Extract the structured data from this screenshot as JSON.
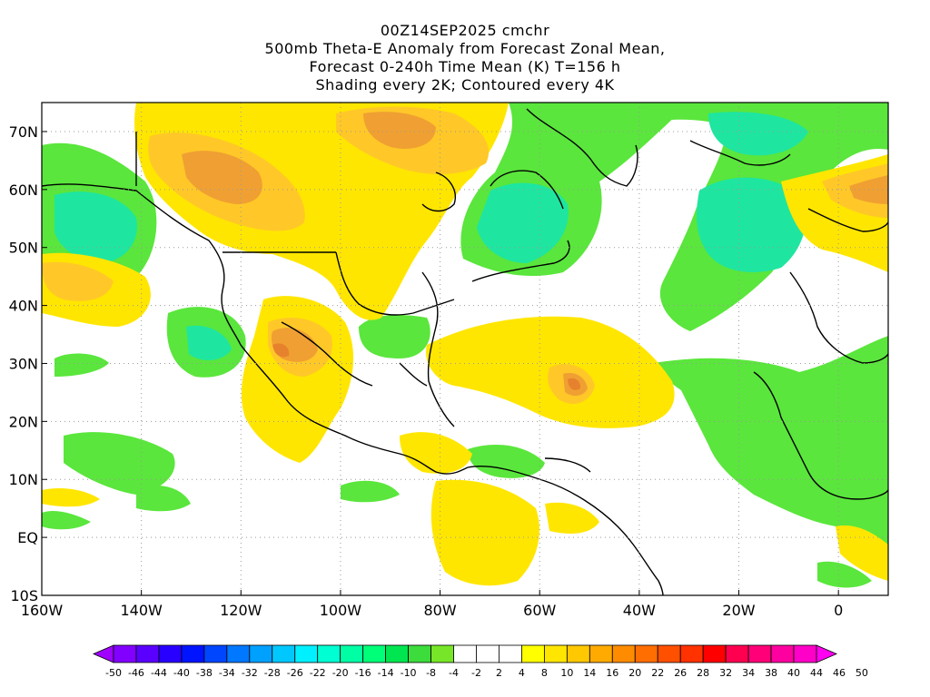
{
  "title": {
    "line1": "00Z14SEP2025 cmchr",
    "line2": "500mb Theta-E Anomaly from Forecast Zonal Mean,",
    "line3": "Forecast 0-240h Time Mean (K) T=156 h",
    "line4": "Shading every 2K; Contoured every 4K"
  },
  "map": {
    "lon_range": [
      -160,
      10
    ],
    "lat_range": [
      -10,
      75
    ],
    "x_tick_labels": [
      "160W",
      "140W",
      "120W",
      "100W",
      "80W",
      "60W",
      "40W",
      "20W",
      "0"
    ],
    "y_tick_labels": [
      "10S",
      "EQ",
      "10N",
      "20N",
      "30N",
      "40N",
      "50N",
      "60N",
      "70N"
    ]
  },
  "colorbar": {
    "labels": [
      "-50",
      "-46",
      "-44",
      "-40",
      "-38",
      "-34",
      "-32",
      "-28",
      "-26",
      "-22",
      "-20",
      "-16",
      "-14",
      "-10",
      "-8",
      "-4",
      "-2",
      "2",
      "4",
      "8",
      "10",
      "14",
      "16",
      "20",
      "22",
      "26",
      "28",
      "32",
      "34",
      "38",
      "40",
      "44",
      "46",
      "50"
    ],
    "colors": [
      "#a000ff",
      "#8200ff",
      "#5a00ff",
      "#2800ff",
      "#0014ff",
      "#0046ff",
      "#0078ff",
      "#00a0ff",
      "#00c8ff",
      "#00f0ff",
      "#00ffd2",
      "#00ffa5",
      "#00ff78",
      "#00e650",
      "#3cdc3c",
      "#78e628",
      "#ffffff",
      "#ffffff",
      "#ffffff",
      "#ffff00",
      "#ffe600",
      "#ffc800",
      "#ffaa00",
      "#ff8c00",
      "#ff6e00",
      "#ff5000",
      "#ff3200",
      "#ff0000",
      "#ff0050",
      "#ff0078",
      "#ff00a0",
      "#ff00c8",
      "#ff00f0"
    ]
  },
  "colors": {
    "green": "#5ae63c",
    "teal": "#1ee6a0",
    "yellow": "#ffe600",
    "light_orange": "#ffc828",
    "orange": "#f0a032",
    "dark_orange": "#e6822d"
  }
}
